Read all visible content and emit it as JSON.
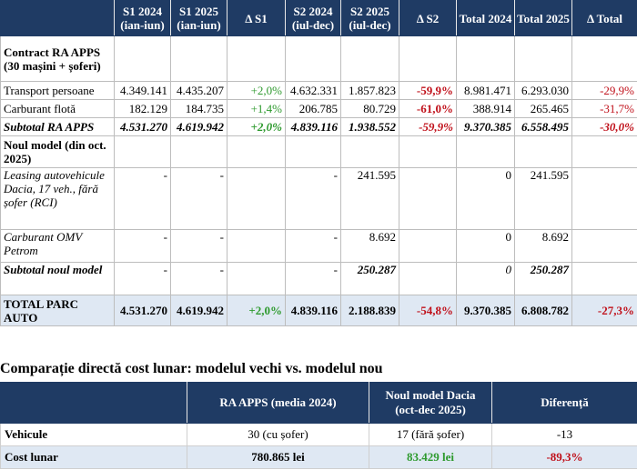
{
  "table1": {
    "headers": [
      "",
      "S1 2024 (ian-iun)",
      "S1 2025 (ian-iun)",
      "Δ S1",
      "S2 2024 (iul-dec)",
      "S2 2025 (iul-dec)",
      "Δ S2",
      "Total 2024",
      "Total 2025",
      "Δ Total"
    ],
    "section1_label": "Contract RA APPS (30 mașini + șoferi)",
    "rows_old": [
      {
        "label": "Transport persoane",
        "s1_2024": "4.349.141",
        "s1_2025": "4.435.207",
        "d_s1": "+2,0%",
        "s2_2024": "4.632.331",
        "s2_2025": "1.857.823",
        "d_s2": "-59,9%",
        "t2024": "8.981.471",
        "t2025": "6.293.030",
        "d_total": "-29,9%"
      },
      {
        "label": "Carburant flotă",
        "s1_2024": "182.129",
        "s1_2025": "184.735",
        "d_s1": "+1,4%",
        "s2_2024": "206.785",
        "s2_2025": "80.729",
        "d_s2": "-61,0%",
        "t2024": "388.914",
        "t2025": "265.465",
        "d_total": "-31,7%"
      }
    ],
    "subtotal_old": {
      "label": "Subtotal RA APPS",
      "s1_2024": "4.531.270",
      "s1_2025": "4.619.942",
      "d_s1": "+2,0%",
      "s2_2024": "4.839.116",
      "s2_2025": "1.938.552",
      "d_s2": "-59,9%",
      "t2024": "9.370.385",
      "t2025": "6.558.495",
      "d_total": "-30,0%"
    },
    "section2_label": "Noul model (din oct. 2025)",
    "rows_new": [
      {
        "label": "Leasing autovehicule Dacia, 17 veh., fără șofer (RCI)",
        "s1_2024": "-",
        "s1_2025": "-",
        "d_s1": "",
        "s2_2024": "-",
        "s2_2025": "241.595",
        "d_s2": "",
        "t2024": "0",
        "t2025": "241.595",
        "d_total": ""
      },
      {
        "label": "Carburant OMV Petrom",
        "s1_2024": "-",
        "s1_2025": "-",
        "d_s1": "",
        "s2_2024": "-",
        "s2_2025": "8.692",
        "d_s2": "",
        "t2024": "0",
        "t2025": "8.692",
        "d_total": ""
      }
    ],
    "subtotal_new": {
      "label": "Subtotal noul model",
      "s1_2024": "-",
      "s1_2025": "-",
      "d_s1": "",
      "s2_2024": "-",
      "s2_2025": "250.287",
      "d_s2": "",
      "t2024": "0",
      "t2025": "250.287",
      "d_total": ""
    },
    "total": {
      "label": "TOTAL PARC AUTO",
      "s1_2024": "4.531.270",
      "s1_2025": "4.619.942",
      "d_s1": "+2,0%",
      "s2_2024": "4.839.116",
      "s2_2025": "2.188.839",
      "d_s2": "-54,8%",
      "t2024": "9.370.385",
      "t2025": "6.808.782",
      "d_total": "-27,3%"
    }
  },
  "section_title": "Comparație directă cost lunar: modelul vechi vs. modelul nou",
  "table2": {
    "headers": [
      "",
      "RA APPS (media 2024)",
      "Noul model Dacia (oct-dec 2025)",
      "Diferență"
    ],
    "rows": [
      {
        "label": "Vehicule",
        "old": "30 (cu șofer)",
        "new": "17 (fără șofer)",
        "diff": "-13"
      },
      {
        "label": "Cost lunar",
        "old": "780.865 lei",
        "new": "83.429 lei",
        "diff": "-89,3%"
      }
    ]
  },
  "colors": {
    "header_bg": "#1f3b64",
    "positive": "#2e9a2e",
    "negative": "#c0101a",
    "total_bg": "#dfe8f3"
  }
}
